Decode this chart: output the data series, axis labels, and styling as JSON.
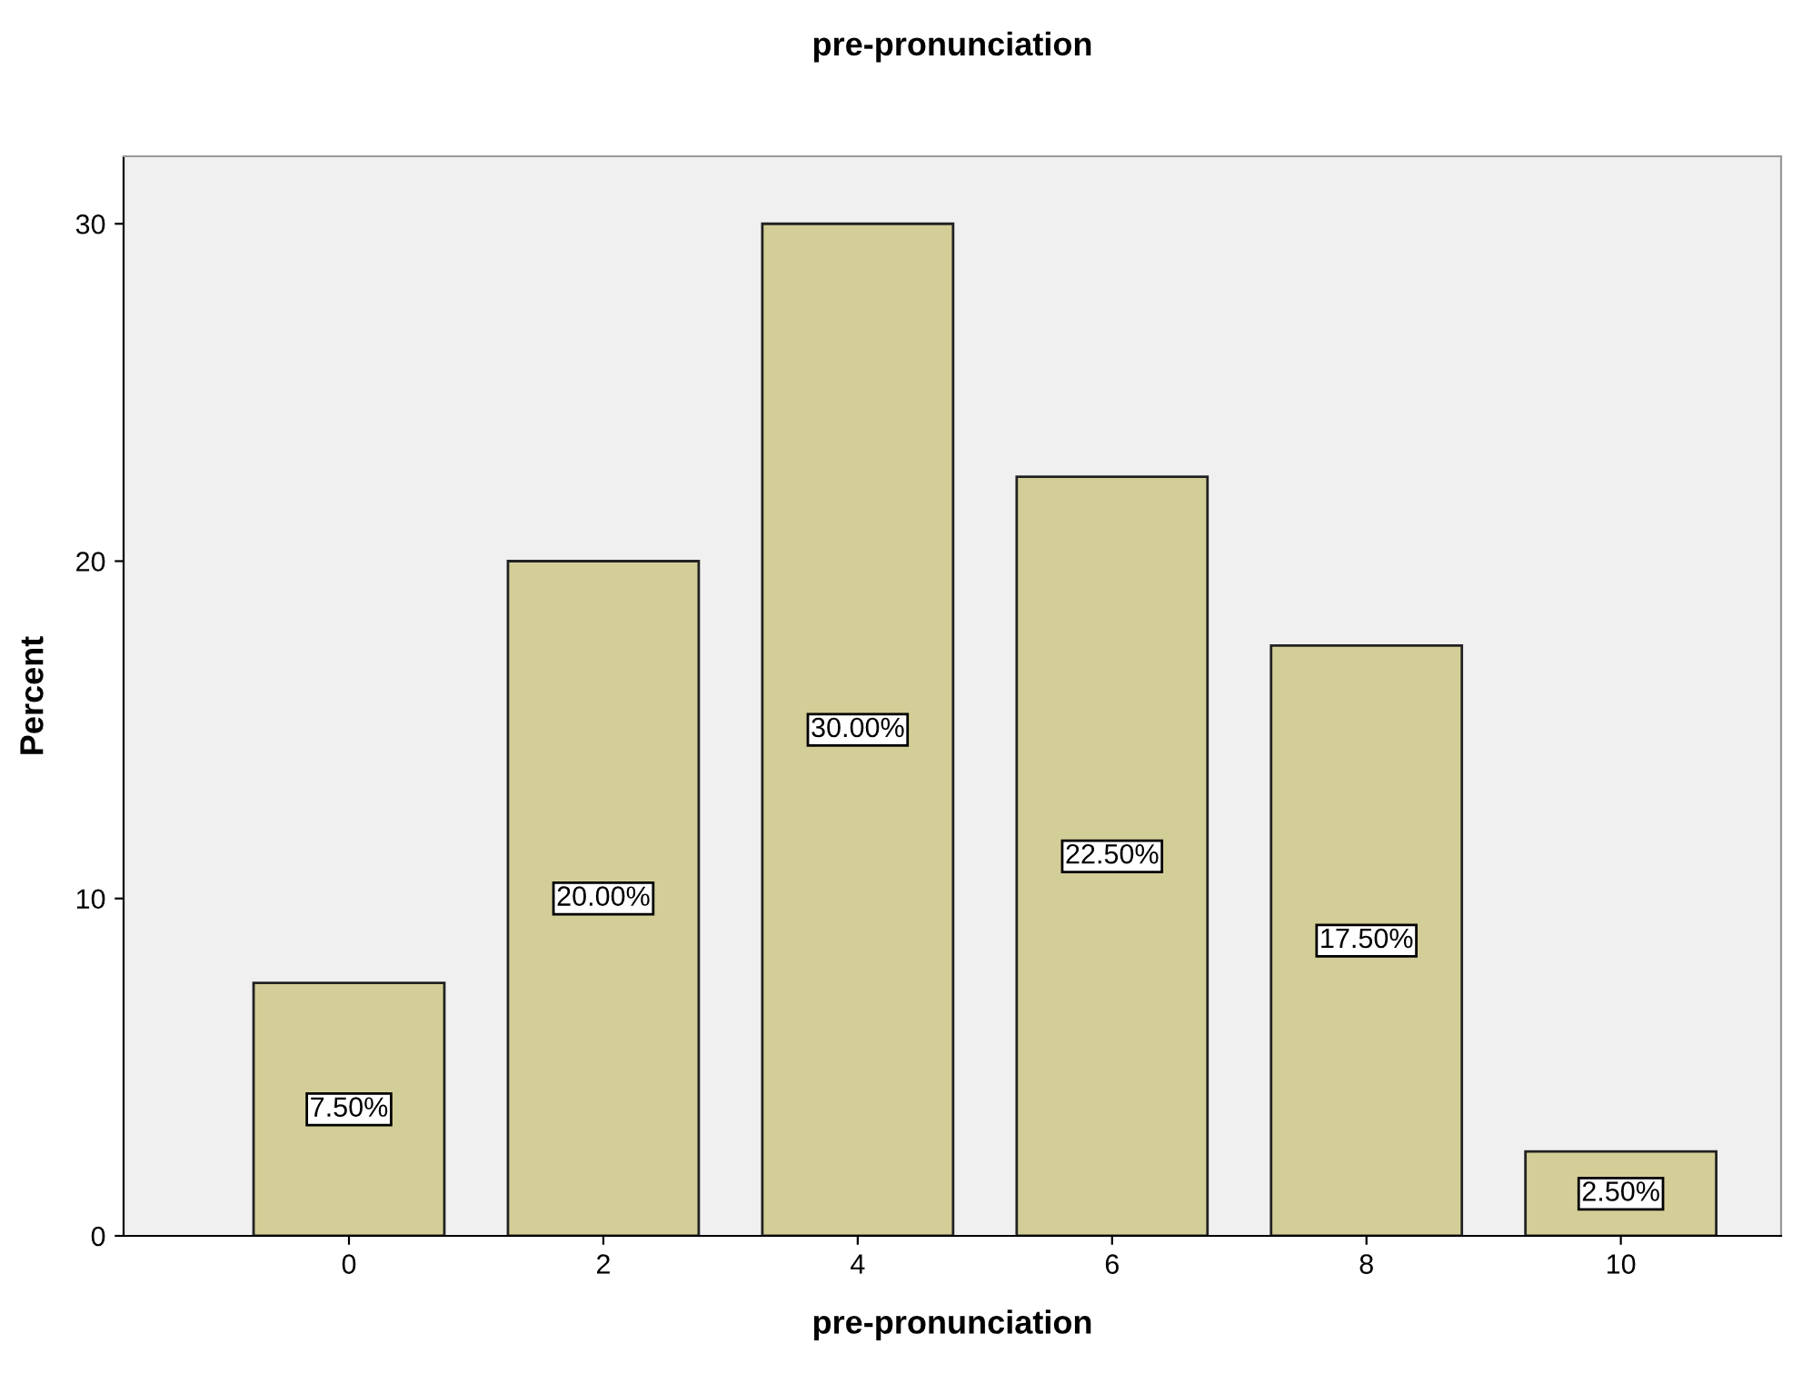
{
  "chart_data": {
    "type": "bar",
    "title": "pre-pronunciation",
    "xlabel": "pre-pronunciation",
    "ylabel": "Percent",
    "categories": [
      "0",
      "2",
      "4",
      "6",
      "8",
      "10"
    ],
    "values": [
      7.5,
      20,
      30,
      22.5,
      17.5,
      2.5
    ],
    "value_labels": [
      "7.50%",
      "20.00%",
      "30.00%",
      "22.50%",
      "17.50%",
      "2.50%"
    ],
    "color": "#d3ce97",
    "ylim": [
      0,
      32
    ],
    "yticks": [
      0,
      10,
      20,
      30
    ],
    "grid": false,
    "legend": false
  }
}
